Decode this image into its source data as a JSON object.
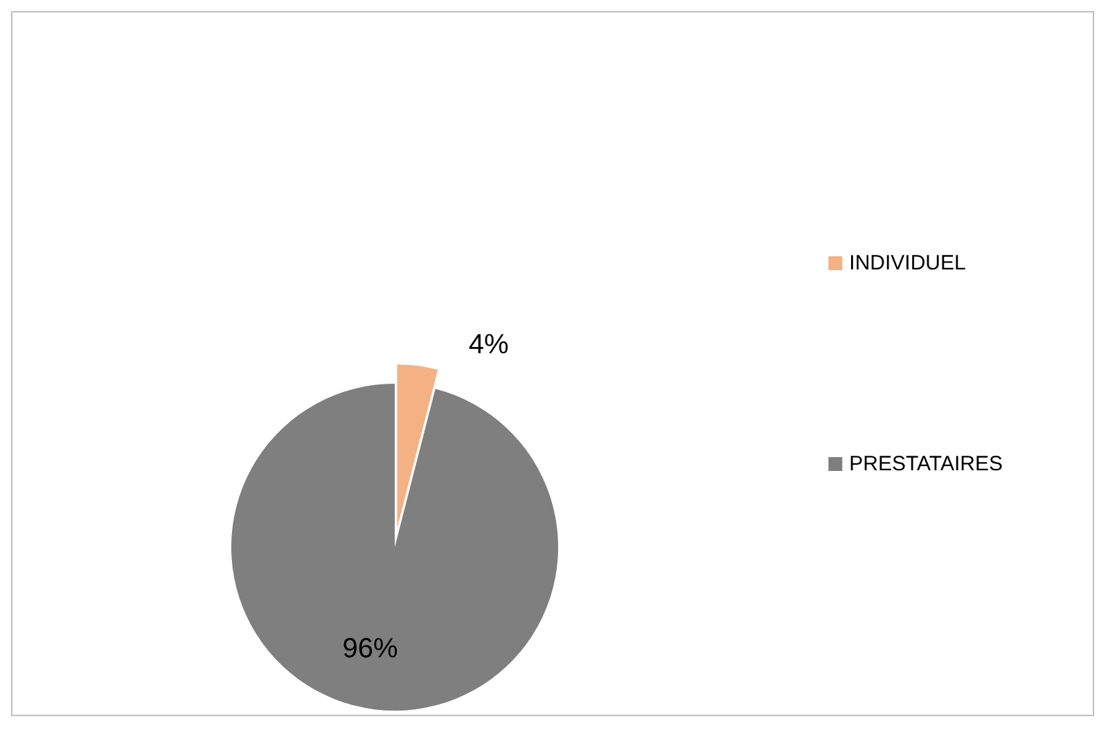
{
  "chart_data": {
    "type": "pie",
    "categories": [
      "INDIVIDUEL",
      "PRESTATAIRES"
    ],
    "values": [
      4,
      96
    ],
    "colors": [
      "#f4b183",
      "#7f7f7f"
    ],
    "value_labels": [
      "4%",
      "96%"
    ],
    "legend": "right"
  }
}
